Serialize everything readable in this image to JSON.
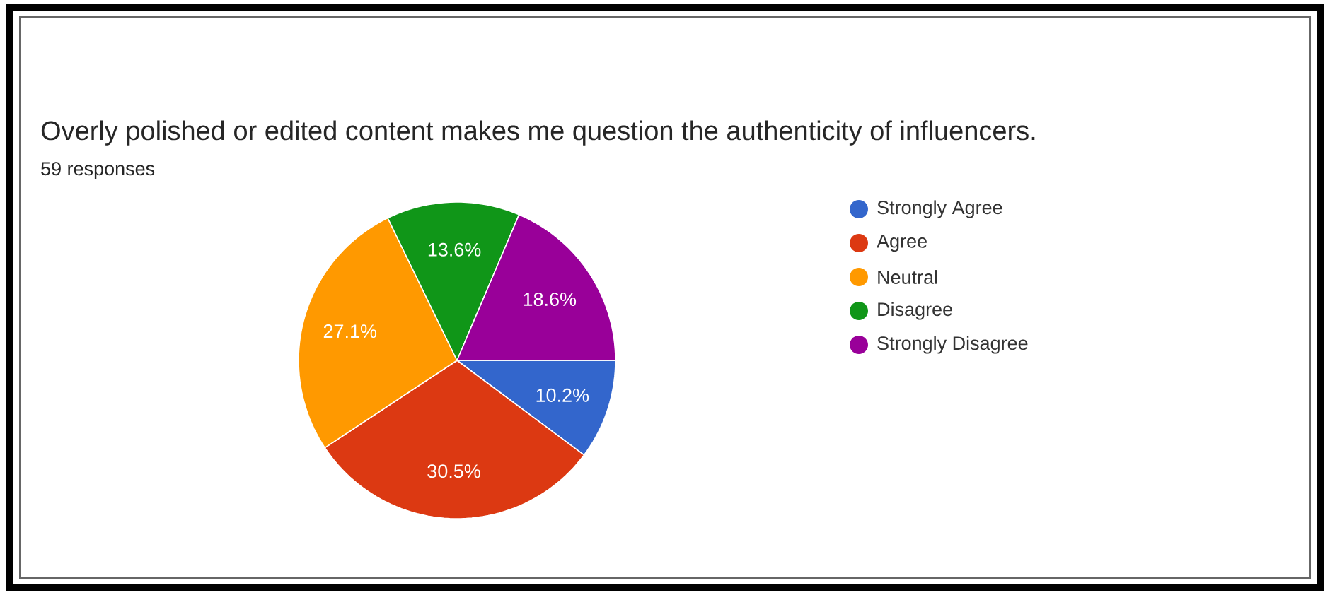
{
  "chart_data": {
    "type": "pie",
    "title": "Overly polished or edited content makes me question the authenticity of influencers.",
    "subtitle": "59 responses",
    "categories": [
      "Strongly Agree",
      "Agree",
      "Neutral",
      "Disagree",
      "Strongly Disagree"
    ],
    "values": [
      10.2,
      30.5,
      27.1,
      13.6,
      18.6
    ],
    "value_labels": [
      "10.2%",
      "30.5%",
      "27.1%",
      "13.6%",
      "18.6%"
    ],
    "colors": [
      "#3366cc",
      "#dc3912",
      "#ff9900",
      "#109618",
      "#990099"
    ],
    "legend": "right"
  }
}
